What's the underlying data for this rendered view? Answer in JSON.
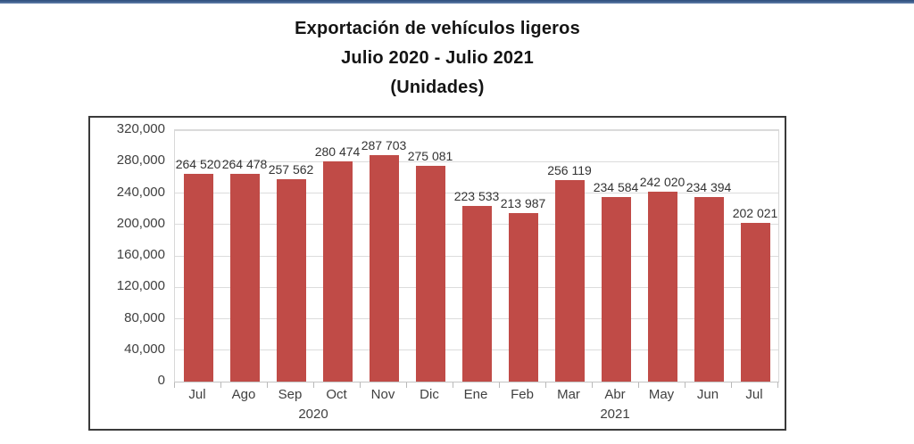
{
  "page": {
    "accent_color": "#41618f",
    "background_color": "#ffffff"
  },
  "title": {
    "line1": "Exportación de vehículos ligeros",
    "line2": "Julio 2020 - Julio 2021",
    "line3": "(Unidades)"
  },
  "chart_data": {
    "type": "bar",
    "title": "Exportación de vehículos ligeros",
    "subtitle": "Julio 2020 - Julio 2021",
    "units_label": "(Unidades)",
    "categories": [
      "Jul",
      "Ago",
      "Sep",
      "Oct",
      "Nov",
      "Dic",
      "Ene",
      "Feb",
      "Mar",
      "Abr",
      "May",
      "Jun",
      "Jul"
    ],
    "values": [
      264520,
      264478,
      257562,
      280474,
      287703,
      275081,
      223533,
      213987,
      256119,
      234584,
      242020,
      234394,
      202021
    ],
    "data_labels": [
      "264 520",
      "264 478",
      "257 562",
      "280 474",
      "287 703",
      "275 081",
      "223 533",
      "213 987",
      "256 119",
      "234 584",
      "242 020",
      "234 394",
      "202 021"
    ],
    "year_groups": [
      {
        "label": "2020",
        "start": 0,
        "end": 5
      },
      {
        "label": "2021",
        "start": 6,
        "end": 12
      }
    ],
    "xlabel": "",
    "ylabel": "",
    "ylim": [
      0,
      320000
    ],
    "ytick_step": 40000,
    "ytick_labels": [
      "0",
      "40,000",
      "80,000",
      "120,000",
      "160,000",
      "200,000",
      "240,000",
      "280,000",
      "320,000"
    ],
    "grid": true,
    "legend": "none",
    "bar_color": "#c04b47",
    "gridline_color": "#dcdcdc",
    "label_color": "#404040"
  }
}
